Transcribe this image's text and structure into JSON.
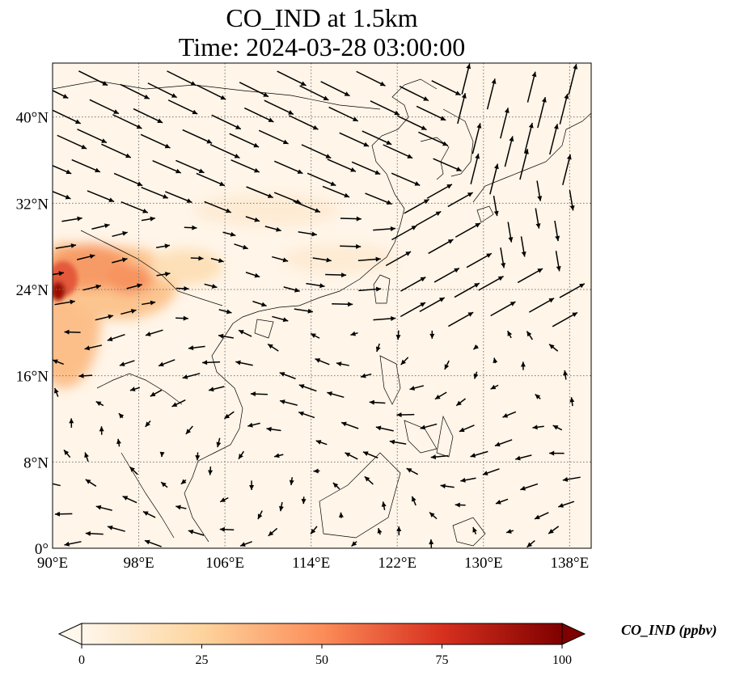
{
  "title": {
    "line1": "CO_IND at 1.5km",
    "line2": "Time: 2024-03-28 03:00:00"
  },
  "map": {
    "projection": "PlateCarree",
    "lon_range": [
      90,
      140
    ],
    "lat_range": [
      0,
      45
    ],
    "lon_ticks": [
      {
        "value": 90,
        "label": "90°E"
      },
      {
        "value": 98,
        "label": "98°E"
      },
      {
        "value": 106,
        "label": "106°E"
      },
      {
        "value": 114,
        "label": "114°E"
      },
      {
        "value": 122,
        "label": "122°E"
      },
      {
        "value": 130,
        "label": "130°E"
      },
      {
        "value": 138,
        "label": "138°E"
      }
    ],
    "lat_ticks": [
      {
        "value": 0,
        "label": "0°"
      },
      {
        "value": 8,
        "label": "8°N"
      },
      {
        "value": 16,
        "label": "16°N"
      },
      {
        "value": 24,
        "label": "24°N"
      },
      {
        "value": 32,
        "label": "32°N"
      },
      {
        "value": 40,
        "label": "40°N"
      }
    ],
    "gridlines": true,
    "field": "CO_IND concentration",
    "wind_vectors": true
  },
  "colorbar": {
    "label": "CO_IND (ppbv)",
    "colormap": "OrRd",
    "min": 0,
    "max": 100,
    "extend": "both",
    "ticks": [
      {
        "value": 0,
        "label": "0"
      },
      {
        "value": 25,
        "label": "25"
      },
      {
        "value": 50,
        "label": "50"
      },
      {
        "value": 75,
        "label": "75"
      },
      {
        "value": 100,
        "label": "100"
      }
    ],
    "colors": [
      "#fff7ec",
      "#fdd49e",
      "#fc8d59",
      "#d7301f",
      "#7f0000"
    ]
  }
}
